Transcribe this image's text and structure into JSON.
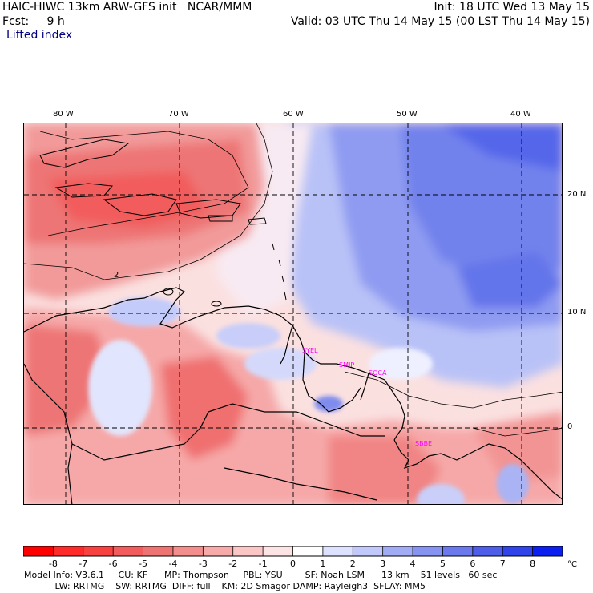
{
  "header": {
    "title": "HAIC-HIWC 13km ARW-GFS init   NCAR/MMM",
    "init": "Init: 18 UTC Wed 13 May 15",
    "fcst_label": "Fcst:     9 h",
    "valid": "Valid: 03 UTC Thu 14 May 15 (00 LST Thu 14 May 15)",
    "field": "Lifted index"
  },
  "map": {
    "lon_labels": [
      "80 W",
      "70 W",
      "60 W",
      "50 W",
      "40 W"
    ],
    "lat_labels": [
      "20 N",
      "10 N",
      "0"
    ],
    "contour_labels": [
      "2"
    ],
    "stations": [
      "SYEL",
      "SMJP",
      "SOCA",
      "SBBE"
    ]
  },
  "colorbar": {
    "ticks": [
      "-8",
      "-7",
      "-6",
      "-5",
      "-4",
      "-3",
      "-2",
      "-1",
      "0",
      "1",
      "2",
      "3",
      "4",
      "5",
      "6",
      "7",
      "8"
    ],
    "unit": "°C",
    "colors": [
      "#ff0000",
      "#ff2a2a",
      "#f84242",
      "#f25c5c",
      "#ee7474",
      "#f38e8e",
      "#f7aaaa",
      "#fbc6c6",
      "#fde4e4",
      "#ffffff",
      "#dde2ff",
      "#c1c9fb",
      "#a2acf5",
      "#8693f0",
      "#6b79ec",
      "#4f5ee9",
      "#3144ea",
      "#0b1ff0"
    ]
  },
  "footer": {
    "line1": "Model Info: V3.6.1     CU: KF      MP: Thompson     PBL: YSU        SF: Noah LSM      13 km    51 levels   60 sec",
    "line2": "           LW: RRTMG    SW: RRTMG  DIFF: full    KM: 2D Smagor DAMP: Rayleigh3  SFLAY: MM5"
  }
}
